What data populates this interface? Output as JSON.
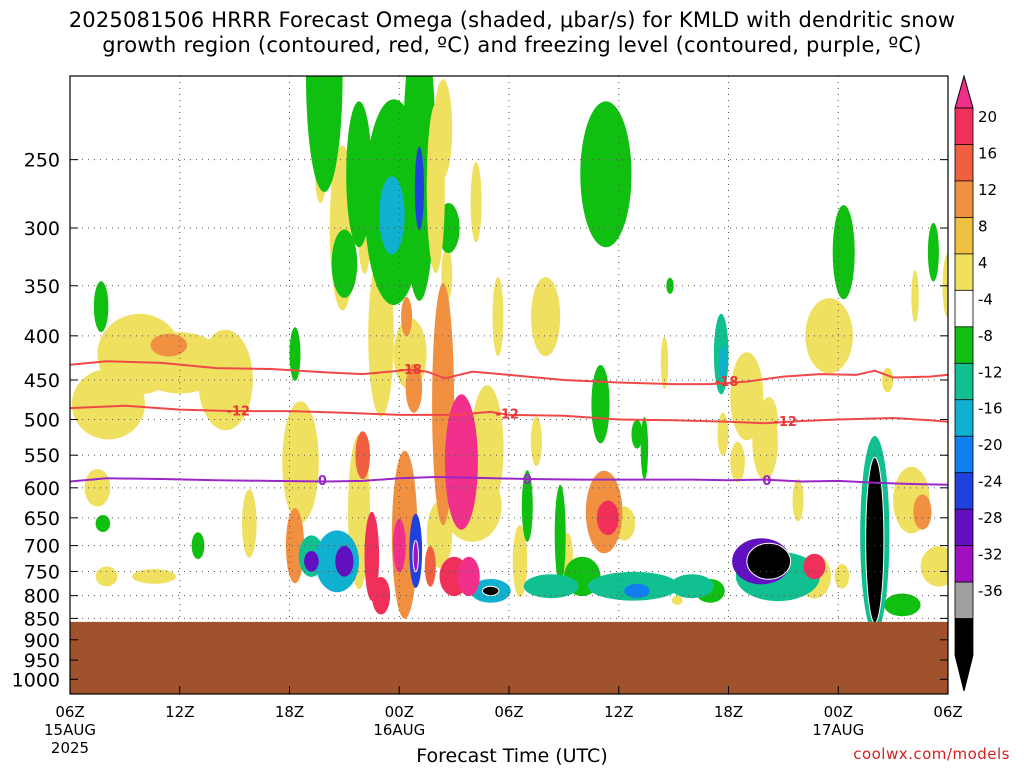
{
  "title_line1": "2025081506 HRRR Forecast Omega (shaded, μbar/s) for KMLD with dendritic snow",
  "title_line2": "growth region (contoured, red, ºC) and freezing level (contoured, purple, ºC)",
  "xlabel": "Forecast Time (UTC)",
  "credit": "coolwx.com/models",
  "chart_data": {
    "type": "heatmap",
    "y_axis": {
      "label": "",
      "scale": "log-pressure",
      "ticks": [
        250,
        300,
        350,
        400,
        450,
        500,
        550,
        600,
        650,
        700,
        750,
        800,
        850,
        900,
        950,
        1000
      ],
      "range": [
        1040,
        200
      ]
    },
    "x_axis": {
      "ticks": [
        {
          "label": "06Z",
          "sub": "15AUG",
          "sub2": "2025",
          "hour": 0
        },
        {
          "label": "12Z",
          "sub": "",
          "sub2": "",
          "hour": 6
        },
        {
          "label": "18Z",
          "sub": "",
          "sub2": "",
          "hour": 12
        },
        {
          "label": "00Z",
          "sub": "16AUG",
          "sub2": "",
          "hour": 18
        },
        {
          "label": "06Z",
          "sub": "",
          "sub2": "",
          "hour": 24
        },
        {
          "label": "12Z",
          "sub": "",
          "sub2": "",
          "hour": 30
        },
        {
          "label": "18Z",
          "sub": "",
          "sub2": "",
          "hour": 36
        },
        {
          "label": "00Z",
          "sub": "17AUG",
          "sub2": "",
          "hour": 42
        },
        {
          "label": "06Z",
          "sub": "",
          "sub2": "",
          "hour": 48
        }
      ],
      "range": [
        0,
        48
      ]
    },
    "terrain_pressure": 858,
    "grid": true,
    "colorbar": {
      "labels": [
        "20",
        "16",
        "12",
        "8",
        "4",
        "-4",
        "-8",
        "-12",
        "-16",
        "-20",
        "-24",
        "-28",
        "-32",
        "-36"
      ],
      "colors": [
        "#f0305a",
        "#f06040",
        "#f09040",
        "#f0c040",
        "#f0e060",
        "#ffffff",
        "#10c010",
        "#10c090",
        "#10b0d0",
        "#1080f0",
        "#2040e0",
        "#6010c0",
        "#a010c0",
        "#a0a0a0",
        "#000000"
      ],
      "top_arrow_color": "#f0308a"
    },
    "contours": [
      {
        "name": "-18",
        "color": "#f04848",
        "points": [
          [
            0,
            432
          ],
          [
            2,
            428
          ],
          [
            5,
            430
          ],
          [
            8,
            436
          ],
          [
            11,
            437
          ],
          [
            14,
            441
          ],
          [
            16,
            443
          ],
          [
            17.5,
            440
          ],
          [
            18.5,
            438
          ],
          [
            19.5,
            440
          ],
          [
            20.5,
            448
          ],
          [
            22,
            440
          ],
          [
            24,
            444
          ],
          [
            27,
            450
          ],
          [
            30,
            453
          ],
          [
            33,
            455
          ],
          [
            35,
            455
          ],
          [
            37,
            452
          ],
          [
            39,
            446
          ],
          [
            41,
            443
          ],
          [
            43,
            444
          ],
          [
            44,
            439
          ],
          [
            45,
            447
          ],
          [
            47,
            446
          ],
          [
            48,
            444
          ]
        ],
        "label_hour": 17.2
      },
      {
        "name": "-12",
        "color": "#f04848",
        "points": [
          [
            0,
            485
          ],
          [
            3,
            482
          ],
          [
            6,
            487
          ],
          [
            9,
            489
          ],
          [
            12,
            489
          ],
          [
            15,
            491
          ],
          [
            18,
            494
          ],
          [
            21,
            494
          ],
          [
            23,
            490
          ],
          [
            24,
            494
          ],
          [
            27,
            495
          ],
          [
            30,
            500
          ],
          [
            33,
            501
          ],
          [
            36,
            503
          ],
          [
            38,
            505
          ],
          [
            40,
            502
          ],
          [
            42,
            500
          ],
          [
            45,
            498
          ],
          [
            47,
            501
          ],
          [
            48,
            503
          ]
        ],
        "label_hour": 22.2
      },
      {
        "name": "0",
        "color": "#9a28c8",
        "points": [
          [
            0,
            590
          ],
          [
            2,
            585
          ],
          [
            5,
            586
          ],
          [
            8,
            588
          ],
          [
            11,
            589
          ],
          [
            14,
            590
          ],
          [
            16,
            589
          ],
          [
            18,
            585
          ],
          [
            20,
            583
          ],
          [
            22,
            584
          ],
          [
            25,
            586
          ],
          [
            28,
            587
          ],
          [
            31,
            587
          ],
          [
            34,
            587
          ],
          [
            36,
            588
          ],
          [
            38,
            587
          ],
          [
            40,
            590
          ],
          [
            42,
            589
          ],
          [
            44,
            592
          ],
          [
            46,
            594
          ],
          [
            48,
            595
          ]
        ],
        "label_hour": 13.8
      }
    ],
    "contour_labels": [
      {
        "text": "-18",
        "hour": 18.6,
        "p": 437
      },
      {
        "text": "-18",
        "hour": 35.9,
        "p": 451
      },
      {
        "text": "-12",
        "hour": 9.2,
        "p": 488
      },
      {
        "text": "-12",
        "hour": 23.9,
        "p": 492
      },
      {
        "text": "-12",
        "hour": 39.1,
        "p": 502
      },
      {
        "text": "0",
        "hour": 13.8,
        "p": 588
      },
      {
        "text": "0",
        "hour": 25.0,
        "p": 586
      },
      {
        "text": "0",
        "hour": 38.1,
        "p": 588
      }
    ],
    "omega_blobs": [
      {
        "h": 2.1,
        "p": 480,
        "w": 2.0,
        "dp": 90,
        "v": 5
      },
      {
        "h": 3.8,
        "p": 420,
        "w": 2.3,
        "dp": 90,
        "v": 5
      },
      {
        "h": 6.0,
        "p": 430,
        "w": 2.5,
        "dp": 70,
        "v": 5
      },
      {
        "h": 5.4,
        "p": 410,
        "w": 1.0,
        "dp": 25,
        "v": 9
      },
      {
        "h": 8.5,
        "p": 450,
        "w": 1.5,
        "dp": 120,
        "v": 5
      },
      {
        "h": 2.0,
        "p": 760,
        "w": 0.6,
        "dp": 40,
        "v": 5
      },
      {
        "h": 4.6,
        "p": 760,
        "w": 1.2,
        "dp": 30,
        "v": 5
      },
      {
        "h": 1.5,
        "p": 600,
        "w": 0.7,
        "dp": 60,
        "v": 5
      },
      {
        "h": 1.7,
        "p": 370,
        "w": 0.4,
        "dp": 50,
        "v": -6
      },
      {
        "h": 1.8,
        "p": 660,
        "w": 0.4,
        "dp": 30,
        "v": -6
      },
      {
        "h": 7.0,
        "p": 700,
        "w": 0.35,
        "dp": 50,
        "v": -6
      },
      {
        "h": 9.8,
        "p": 660,
        "w": 0.4,
        "dp": 120,
        "v": 5
      },
      {
        "h": 12.3,
        "p": 700,
        "w": 0.5,
        "dp": 140,
        "v": 9
      },
      {
        "h": 12.6,
        "p": 560,
        "w": 1.0,
        "dp": 180,
        "v": 5
      },
      {
        "h": 13.2,
        "p": 720,
        "w": 0.7,
        "dp": 80,
        "v": -10
      },
      {
        "h": 13.2,
        "p": 730,
        "w": 0.4,
        "dp": 40,
        "v": -25
      },
      {
        "h": 14.6,
        "p": 730,
        "w": 1.2,
        "dp": 120,
        "v": -12
      },
      {
        "h": 15.0,
        "p": 730,
        "w": 0.5,
        "dp": 60,
        "v": -24
      },
      {
        "h": 15.8,
        "p": 640,
        "w": 0.6,
        "dp": 260,
        "v": 5
      },
      {
        "h": 16.0,
        "p": 550,
        "w": 0.4,
        "dp": 70,
        "v": 12
      },
      {
        "h": 16.5,
        "p": 720,
        "w": 0.4,
        "dp": 170,
        "v": 18
      },
      {
        "h": 17.0,
        "p": 800,
        "w": 0.5,
        "dp": 80,
        "v": 18
      },
      {
        "h": 14.9,
        "p": 300,
        "w": 0.7,
        "dp": 130,
        "v": 5
      },
      {
        "h": 13.7,
        "p": 260,
        "w": 0.3,
        "dp": 40,
        "v": 5
      },
      {
        "h": 13.9,
        "p": 200,
        "w": 1.0,
        "dp": 120,
        "v": -6
      },
      {
        "h": 15.0,
        "p": 330,
        "w": 0.7,
        "dp": 60,
        "v": -6
      },
      {
        "h": 15.8,
        "p": 260,
        "w": 0.7,
        "dp": 100,
        "v": -6
      },
      {
        "h": 12.3,
        "p": 420,
        "w": 0.3,
        "dp": 60,
        "v": -6
      },
      {
        "h": 17.0,
        "p": 400,
        "w": 0.7,
        "dp": 170,
        "v": 5
      },
      {
        "h": 16.1,
        "p": 290,
        "w": 0.4,
        "dp": 90,
        "v": 5
      },
      {
        "h": 17.7,
        "p": 280,
        "w": 1.6,
        "dp": 150,
        "v": -7
      },
      {
        "h": 17.6,
        "p": 290,
        "w": 0.7,
        "dp": 60,
        "v": -14
      },
      {
        "h": 18.6,
        "p": 240,
        "w": 0.3,
        "dp": 60,
        "v": -6
      },
      {
        "h": 19.1,
        "p": 250,
        "w": 0.9,
        "dp": 180,
        "v": -6
      },
      {
        "h": 19.1,
        "p": 270,
        "w": 0.25,
        "dp": 60,
        "v": -22
      },
      {
        "h": 20.0,
        "p": 270,
        "w": 0.5,
        "dp": 120,
        "v": 7
      },
      {
        "h": 20.4,
        "p": 230,
        "w": 0.5,
        "dp": 60,
        "v": 5
      },
      {
        "h": 20.7,
        "p": 300,
        "w": 0.6,
        "dp": 40,
        "v": -6
      },
      {
        "h": 18.6,
        "p": 420,
        "w": 0.9,
        "dp": 80,
        "v": 5
      },
      {
        "h": 18.4,
        "p": 380,
        "w": 0.3,
        "dp": 40,
        "v": 9
      },
      {
        "h": 18.8,
        "p": 460,
        "w": 0.45,
        "dp": 60,
        "v": 10
      },
      {
        "h": 18.3,
        "p": 680,
        "w": 0.7,
        "dp": 300,
        "v": 10
      },
      {
        "h": 18.0,
        "p": 700,
        "w": 0.35,
        "dp": 100,
        "v": 20
      },
      {
        "h": 18.9,
        "p": 710,
        "w": 0.35,
        "dp": 140,
        "v": -22
      },
      {
        "h": 18.9,
        "p": 720,
        "w": 0.15,
        "dp": 60,
        "v": -30
      },
      {
        "h": 19.7,
        "p": 740,
        "w": 0.3,
        "dp": 80,
        "v": 14
      },
      {
        "h": 20.2,
        "p": 680,
        "w": 0.7,
        "dp": 120,
        "v": 5
      },
      {
        "h": 20.4,
        "p": 480,
        "w": 0.6,
        "dp": 300,
        "v": 9
      },
      {
        "h": 20.6,
        "p": 340,
        "w": 0.3,
        "dp": 50,
        "v": 5
      },
      {
        "h": 21.4,
        "p": 560,
        "w": 0.9,
        "dp": 200,
        "v": 20
      },
      {
        "h": 21.0,
        "p": 760,
        "w": 0.8,
        "dp": 80,
        "v": 16
      },
      {
        "h": 21.8,
        "p": 760,
        "w": 0.6,
        "dp": 80,
        "v": 20
      },
      {
        "h": 22.0,
        "p": 630,
        "w": 1.6,
        "dp": 120,
        "v": 5
      },
      {
        "h": 22.8,
        "p": 540,
        "w": 0.9,
        "dp": 180,
        "v": 5
      },
      {
        "h": 23.0,
        "p": 790,
        "w": 1.1,
        "dp": 50,
        "v": -14
      },
      {
        "h": 23.0,
        "p": 790,
        "w": 0.45,
        "dp": 20,
        "v": -40
      },
      {
        "h": 22.2,
        "p": 280,
        "w": 0.3,
        "dp": 60,
        "v": 5
      },
      {
        "h": 23.4,
        "p": 380,
        "w": 0.3,
        "dp": 80,
        "v": 5
      },
      {
        "h": 24.6,
        "p": 730,
        "w": 0.4,
        "dp": 140,
        "v": 5
      },
      {
        "h": 25.0,
        "p": 630,
        "w": 0.3,
        "dp": 120,
        "v": -6
      },
      {
        "h": 26.3,
        "p": 780,
        "w": 1.5,
        "dp": 50,
        "v": -8
      },
      {
        "h": 26.8,
        "p": 680,
        "w": 0.3,
        "dp": 180,
        "v": -6
      },
      {
        "h": 27.2,
        "p": 720,
        "w": 0.3,
        "dp": 90,
        "v": 5
      },
      {
        "h": 25.5,
        "p": 530,
        "w": 0.3,
        "dp": 70,
        "v": 5
      },
      {
        "h": 26.0,
        "p": 380,
        "w": 0.8,
        "dp": 80,
        "v": 5
      },
      {
        "h": 29.3,
        "p": 260,
        "w": 1.4,
        "dp": 100,
        "v": -6
      },
      {
        "h": 28.5,
        "p": 270,
        "w": 0.4,
        "dp": 40,
        "v": 5
      },
      {
        "h": 29.2,
        "p": 640,
        "w": 1.0,
        "dp": 140,
        "v": 9
      },
      {
        "h": 29.4,
        "p": 650,
        "w": 0.6,
        "dp": 60,
        "v": 17
      },
      {
        "h": 28.0,
        "p": 760,
        "w": 1.0,
        "dp": 80,
        "v": -6
      },
      {
        "h": 30.8,
        "p": 780,
        "w": 2.5,
        "dp": 60,
        "v": -8
      },
      {
        "h": 31.0,
        "p": 790,
        "w": 0.7,
        "dp": 30,
        "v": -16
      },
      {
        "h": 30.3,
        "p": 660,
        "w": 0.6,
        "dp": 60,
        "v": 5
      },
      {
        "h": 29.0,
        "p": 480,
        "w": 0.5,
        "dp": 100,
        "v": -6
      },
      {
        "h": 31.0,
        "p": 520,
        "w": 0.3,
        "dp": 40,
        "v": -6
      },
      {
        "h": 31.4,
        "p": 540,
        "w": 0.2,
        "dp": 90,
        "v": -6
      },
      {
        "h": 32.5,
        "p": 430,
        "w": 0.2,
        "dp": 60,
        "v": 5
      },
      {
        "h": 34.0,
        "p": 780,
        "w": 1.2,
        "dp": 50,
        "v": -8
      },
      {
        "h": 35.0,
        "p": 790,
        "w": 0.8,
        "dp": 50,
        "v": -6
      },
      {
        "h": 33.2,
        "p": 810,
        "w": 0.3,
        "dp": 20,
        "v": 5
      },
      {
        "h": 35.6,
        "p": 420,
        "w": 0.4,
        "dp": 90,
        "v": -8
      },
      {
        "h": 35.7,
        "p": 430,
        "w": 0.2,
        "dp": 40,
        "v": -14
      },
      {
        "h": 35.7,
        "p": 520,
        "w": 0.3,
        "dp": 60,
        "v": 5
      },
      {
        "h": 32.8,
        "p": 350,
        "w": 0.2,
        "dp": 15,
        "v": -6
      },
      {
        "h": 37.8,
        "p": 730,
        "w": 1.6,
        "dp": 90,
        "v": -24
      },
      {
        "h": 38.2,
        "p": 730,
        "w": 1.2,
        "dp": 70,
        "v": -40
      },
      {
        "h": 38.7,
        "p": 760,
        "w": 2.3,
        "dp": 100,
        "v": -8
      },
      {
        "h": 37.0,
        "p": 470,
        "w": 0.9,
        "dp": 110,
        "v": 5
      },
      {
        "h": 38.0,
        "p": 530,
        "w": 0.7,
        "dp": 110,
        "v": 5
      },
      {
        "h": 36.5,
        "p": 560,
        "w": 0.4,
        "dp": 60,
        "v": 5
      },
      {
        "h": 38.2,
        "p": 500,
        "w": 0.5,
        "dp": 60,
        "v": 5
      },
      {
        "h": 42.3,
        "p": 320,
        "w": 0.6,
        "dp": 80,
        "v": -6
      },
      {
        "h": 41.5,
        "p": 400,
        "w": 1.3,
        "dp": 80,
        "v": 5
      },
      {
        "h": 40.7,
        "p": 760,
        "w": 0.9,
        "dp": 90,
        "v": 5
      },
      {
        "h": 40.7,
        "p": 740,
        "w": 0.6,
        "dp": 50,
        "v": 18
      },
      {
        "h": 39.8,
        "p": 620,
        "w": 0.3,
        "dp": 70,
        "v": 5
      },
      {
        "h": 42.2,
        "p": 760,
        "w": 0.4,
        "dp": 50,
        "v": 5
      },
      {
        "h": 44.0,
        "p": 680,
        "w": 0.8,
        "dp": 350,
        "v": -10
      },
      {
        "h": 44.0,
        "p": 690,
        "w": 0.5,
        "dp": 300,
        "v": -40
      },
      {
        "h": 45.5,
        "p": 820,
        "w": 1.0,
        "dp": 50,
        "v": -6
      },
      {
        "h": 46.0,
        "p": 620,
        "w": 1.0,
        "dp": 110,
        "v": 5
      },
      {
        "h": 46.6,
        "p": 640,
        "w": 0.5,
        "dp": 60,
        "v": 10
      },
      {
        "h": 47.5,
        "p": 740,
        "w": 1.0,
        "dp": 80,
        "v": 5
      },
      {
        "h": 47.2,
        "p": 320,
        "w": 0.3,
        "dp": 50,
        "v": -6
      },
      {
        "h": 48.0,
        "p": 350,
        "w": 0.3,
        "dp": 60,
        "v": 5
      },
      {
        "h": 46.2,
        "p": 360,
        "w": 0.2,
        "dp": 50,
        "v": 5
      },
      {
        "h": 44.7,
        "p": 450,
        "w": 0.3,
        "dp": 30,
        "v": 5
      }
    ]
  }
}
